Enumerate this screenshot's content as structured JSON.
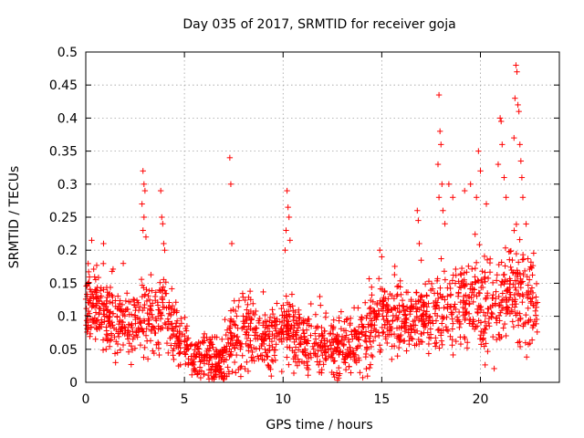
{
  "chart_data": {
    "type": "scatter",
    "title": "Day 035 of 2017, SRMTID for receiver goja",
    "xlabel": "GPS time / hours",
    "ylabel": "SRMTID / TECUs",
    "xlim": [
      0,
      24
    ],
    "ylim": [
      0,
      0.5
    ],
    "x_ticks": [
      0,
      5,
      10,
      15,
      20
    ],
    "x_tick_labels": [
      "0",
      "5",
      "10",
      "15",
      "20"
    ],
    "y_ticks": [
      0,
      0.05,
      0.1,
      0.15,
      0.2,
      0.25,
      0.3,
      0.35,
      0.4,
      0.45,
      0.5
    ],
    "y_tick_labels": [
      "0",
      "0.05",
      "0.1",
      "0.15",
      "0.2",
      "0.25",
      "0.3",
      "0.35",
      "0.4",
      "0.45",
      "0.5"
    ],
    "grid": true,
    "marker": "+",
    "color": "#ff0000",
    "x_data_range": [
      0,
      22.9
    ],
    "profile_x": [
      0,
      0.5,
      1,
      1.5,
      2,
      2.5,
      3,
      3.5,
      4,
      4.5,
      5,
      5.5,
      6,
      6.5,
      7,
      7.5,
      8,
      8.5,
      9,
      9.5,
      10,
      10.5,
      11,
      11.5,
      12,
      12.5,
      13,
      13.5,
      14,
      14.5,
      15,
      15.5,
      16,
      16.5,
      17,
      17.5,
      18,
      18.5,
      19,
      19.5,
      20,
      20.5,
      21,
      21.5,
      22,
      22.5,
      22.9
    ],
    "profile_center": [
      0.13,
      0.11,
      0.1,
      0.09,
      0.09,
      0.09,
      0.1,
      0.1,
      0.11,
      0.08,
      0.06,
      0.04,
      0.035,
      0.03,
      0.035,
      0.07,
      0.08,
      0.07,
      0.065,
      0.07,
      0.09,
      0.08,
      0.06,
      0.06,
      0.055,
      0.05,
      0.05,
      0.06,
      0.07,
      0.09,
      0.11,
      0.1,
      0.09,
      0.09,
      0.1,
      0.1,
      0.11,
      0.1,
      0.12,
      0.12,
      0.13,
      0.12,
      0.13,
      0.14,
      0.14,
      0.12,
      0.12
    ],
    "profile_spread": [
      0.04,
      0.04,
      0.04,
      0.035,
      0.035,
      0.04,
      0.05,
      0.04,
      0.04,
      0.035,
      0.03,
      0.025,
      0.025,
      0.025,
      0.025,
      0.04,
      0.04,
      0.035,
      0.035,
      0.035,
      0.04,
      0.035,
      0.03,
      0.03,
      0.035,
      0.035,
      0.035,
      0.035,
      0.04,
      0.04,
      0.04,
      0.04,
      0.04,
      0.04,
      0.04,
      0.045,
      0.05,
      0.05,
      0.05,
      0.05,
      0.055,
      0.06,
      0.06,
      0.065,
      0.065,
      0.05,
      0.045
    ],
    "outliers": [
      {
        "x": 0.3,
        "y": 0.215
      },
      {
        "x": 0.9,
        "y": 0.21
      },
      {
        "x": 1.9,
        "y": 0.18
      },
      {
        "x": 2.9,
        "y": 0.32
      },
      {
        "x": 2.95,
        "y": 0.3
      },
      {
        "x": 3.0,
        "y": 0.29
      },
      {
        "x": 2.85,
        "y": 0.27
      },
      {
        "x": 2.95,
        "y": 0.25
      },
      {
        "x": 2.9,
        "y": 0.23
      },
      {
        "x": 3.05,
        "y": 0.22
      },
      {
        "x": 3.8,
        "y": 0.29
      },
      {
        "x": 3.85,
        "y": 0.25
      },
      {
        "x": 3.9,
        "y": 0.24
      },
      {
        "x": 3.95,
        "y": 0.21
      },
      {
        "x": 4.0,
        "y": 0.2
      },
      {
        "x": 7.3,
        "y": 0.34
      },
      {
        "x": 7.35,
        "y": 0.3
      },
      {
        "x": 7.4,
        "y": 0.21
      },
      {
        "x": 10.2,
        "y": 0.29
      },
      {
        "x": 10.25,
        "y": 0.265
      },
      {
        "x": 10.3,
        "y": 0.25
      },
      {
        "x": 10.15,
        "y": 0.23
      },
      {
        "x": 10.35,
        "y": 0.215
      },
      {
        "x": 10.1,
        "y": 0.2
      },
      {
        "x": 14.9,
        "y": 0.2
      },
      {
        "x": 15.0,
        "y": 0.19
      },
      {
        "x": 16.8,
        "y": 0.26
      },
      {
        "x": 16.85,
        "y": 0.245
      },
      {
        "x": 16.9,
        "y": 0.21
      },
      {
        "x": 17.9,
        "y": 0.435
      },
      {
        "x": 17.95,
        "y": 0.38
      },
      {
        "x": 18.0,
        "y": 0.36
      },
      {
        "x": 17.85,
        "y": 0.33
      },
      {
        "x": 18.05,
        "y": 0.3
      },
      {
        "x": 17.9,
        "y": 0.28
      },
      {
        "x": 18.1,
        "y": 0.26
      },
      {
        "x": 18.2,
        "y": 0.24
      },
      {
        "x": 18.4,
        "y": 0.3
      },
      {
        "x": 18.6,
        "y": 0.28
      },
      {
        "x": 19.2,
        "y": 0.29
      },
      {
        "x": 19.5,
        "y": 0.3
      },
      {
        "x": 19.8,
        "y": 0.28
      },
      {
        "x": 19.9,
        "y": 0.35
      },
      {
        "x": 20.0,
        "y": 0.32
      },
      {
        "x": 20.3,
        "y": 0.27
      },
      {
        "x": 20.9,
        "y": 0.33
      },
      {
        "x": 21.0,
        "y": 0.4
      },
      {
        "x": 21.05,
        "y": 0.395
      },
      {
        "x": 21.1,
        "y": 0.36
      },
      {
        "x": 21.2,
        "y": 0.31
      },
      {
        "x": 21.3,
        "y": 0.28
      },
      {
        "x": 21.7,
        "y": 0.37
      },
      {
        "x": 21.75,
        "y": 0.43
      },
      {
        "x": 21.8,
        "y": 0.48
      },
      {
        "x": 21.85,
        "y": 0.47
      },
      {
        "x": 21.9,
        "y": 0.42
      },
      {
        "x": 21.95,
        "y": 0.41
      },
      {
        "x": 22.0,
        "y": 0.36
      },
      {
        "x": 22.05,
        "y": 0.335
      },
      {
        "x": 22.1,
        "y": 0.31
      },
      {
        "x": 22.15,
        "y": 0.28
      }
    ]
  }
}
